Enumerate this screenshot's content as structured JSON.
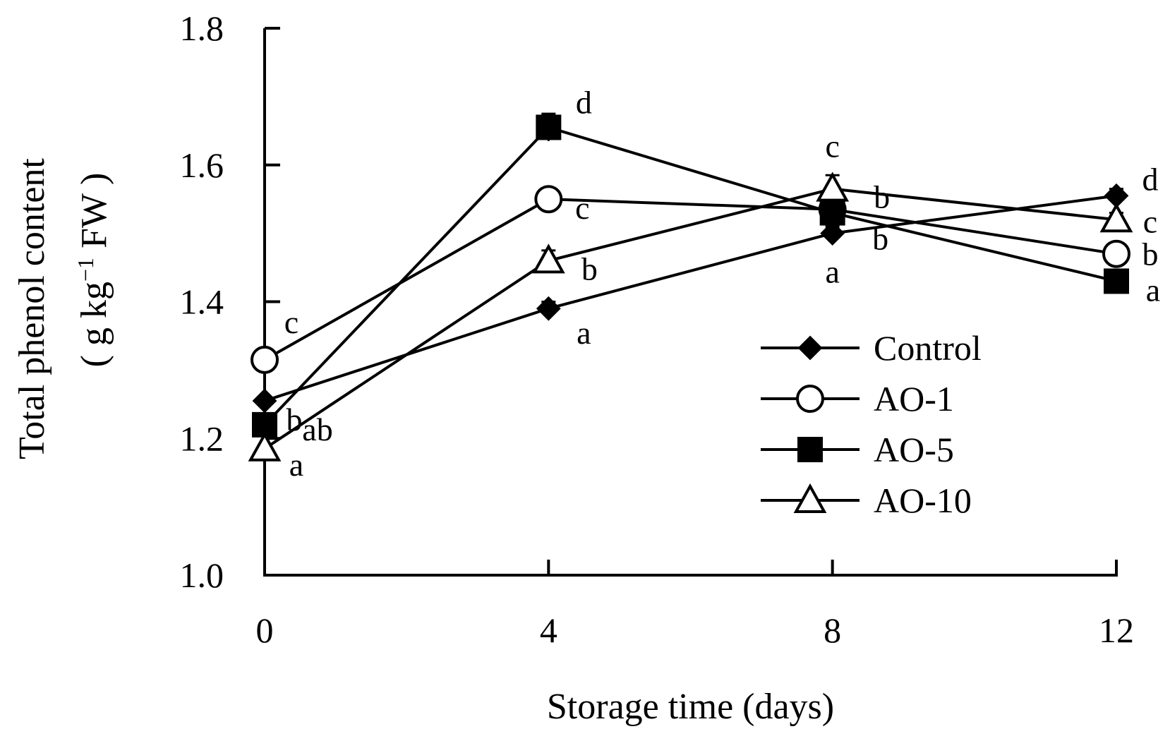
{
  "chart_data": {
    "type": "line",
    "xlabel": "Storage time (days)",
    "ylabel": {
      "line1": "Total phenol content",
      "line2_prefix": "( g kg",
      "line2_superscript": "−1",
      "line2_suffix": " FW )"
    },
    "x": [
      0,
      4,
      8,
      12
    ],
    "x_tick_labels": [
      "0",
      "4",
      "8",
      "12"
    ],
    "y_tick_labels": [
      "1.0",
      "1.2",
      "1.4",
      "1.6",
      "1.8"
    ],
    "xlim": [
      0,
      12
    ],
    "ylim": [
      1.0,
      1.8
    ],
    "grid": false,
    "legend_position": "center-right",
    "series": [
      {
        "name": "Control",
        "marker": "diamond-filled",
        "values": [
          1.255,
          1.39,
          1.5,
          1.555
        ],
        "errors": [
          0.005,
          0.01,
          0.01,
          0.01
        ],
        "letters": [
          "b",
          "a",
          "a",
          "d"
        ]
      },
      {
        "name": "AO-1",
        "marker": "circle-open",
        "values": [
          1.315,
          1.55,
          1.535,
          1.47
        ],
        "errors": [
          0.005,
          0.005,
          0.005,
          0.01
        ],
        "letters": [
          "c",
          "c",
          "b",
          "b"
        ]
      },
      {
        "name": "AO-5",
        "marker": "square-filled",
        "values": [
          1.22,
          1.655,
          1.53,
          1.43
        ],
        "errors": [
          0.01,
          0.02,
          0.01,
          0.005
        ],
        "letters": [
          "ab",
          "d",
          "b",
          "a"
        ]
      },
      {
        "name": "AO-10",
        "marker": "triangle-open",
        "values": [
          1.185,
          1.46,
          1.565,
          1.52
        ],
        "errors": [
          0.005,
          0.015,
          0.02,
          0.01
        ],
        "letters": [
          "a",
          "b",
          "c",
          "c"
        ]
      }
    ]
  }
}
